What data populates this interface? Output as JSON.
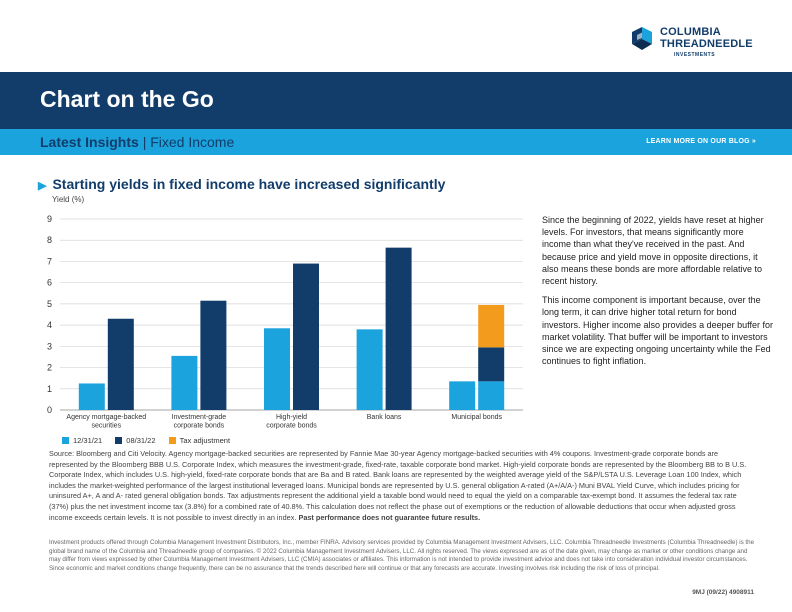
{
  "logo": {
    "line1": "COLUMBIA",
    "line2": "THREADNEEDLE",
    "sub": "INVESTMENTS"
  },
  "header": {
    "title": "Chart on the Go"
  },
  "subheader": {
    "bold": "Latest Insights",
    "separator": "|",
    "topic": "Fixed Income",
    "link": "LEARN MORE ON OUR BLOG »"
  },
  "chart_data": {
    "type": "bar",
    "title": "Starting yields in fixed income have increased significantly",
    "ylabel": "Yield (%)",
    "xlabel": "",
    "ylim": [
      0,
      9
    ],
    "yticks": [
      0,
      1,
      2,
      3,
      4,
      5,
      6,
      7,
      8,
      9
    ],
    "categories": [
      [
        "Agency mortgage-backed",
        "securities"
      ],
      [
        "Investment-grade",
        "corporate bonds"
      ],
      [
        "High-yield",
        "corporate bonds"
      ],
      [
        "Bank loans"
      ],
      [
        "Municipal bonds"
      ]
    ],
    "series": [
      {
        "name": "12/31/21",
        "color": "#1aa3dd",
        "values": [
          1.25,
          2.55,
          3.85,
          3.8,
          1.35
        ]
      },
      {
        "name": "08/31/22",
        "color": "#123d6b",
        "values": [
          4.3,
          5.15,
          6.9,
          7.65,
          2.95
        ]
      },
      {
        "name": "Tax adjustment",
        "color": "#f29b1d",
        "values": [
          null,
          null,
          null,
          null,
          2.0
        ],
        "stacked_on": "08/31/22",
        "stack_base_series": "12/31/21"
      }
    ],
    "gridlines": true,
    "legend_position": "bottom-left"
  },
  "side_text": {
    "p1": "Since the beginning of 2022, yields have reset at higher levels. For investors, that means significantly more income than what they've received in the past. And because price and yield move in opposite directions, it also means these bonds are more affordable relative to recent history.",
    "p2": "This income component is important because, over the long term, it can drive higher total return for bond investors. Higher income also provides a deeper buffer for market volatility. That buffer will be important to investors since we are expecting ongoing uncertainty while the Fed continues to fight inflation."
  },
  "source": {
    "text": "Source: Bloomberg and Citi Velocity. Agency mortgage-backed securities are represented by Fannie Mae 30-year Agency mortgage-backed securities with 4% coupons. Investment-grade corporate bonds are represented by the Bloomberg BBB U.S. Corporate Index, which measures the investment-grade, fixed-rate, taxable corporate bond market. High-yield corporate bonds are represented by the Bloomberg BB to B U.S. Corporate Index, which includes U.S. high-yield, fixed-rate corporate bonds that are Ba and B rated. Bank loans are represented by the weighted average yield of the S&P/LSTA U.S. Leverage Loan 100 Index, which includes the market-weighted performance of the largest institutional leveraged loans. Municipal bonds are represented by U.S. general obligation A-rated (A+/A/A-) Muni BVAL Yield Curve, which includes pricing for uninsured A+, A and A- rated general obligation bonds. Tax adjustments represent the additional yield a taxable bond would need to equal the yield on a comparable tax-exempt bond. It assumes the federal tax rate (37%) plus the net investment income tax (3.8%) for a combined rate of 40.8%. This calculation does not reflect the phase out of exemptions or the reduction of allowable deductions that occur when adjusted gross income exceeds certain levels. It is not possible to invest directly in an index.",
    "bold": "Past performance does not guarantee future results."
  },
  "disclaimer": "Investment products offered through Columbia Management Investment Distributors, Inc., member FINRA. Advisory services provided by Columbia Management Investment Advisers, LLC. Columbia Threadneedle Investments (Columbia Threadneedle) is the global brand name of the Columbia and Threadneedle group of companies. © 2022 Columbia Management Investment Advisers, LLC. All rights reserved. The views expressed are as of the date given, may change as market or other conditions change and may differ from views expressed by other Columbia Management Investment Advisers, LLC (CMIA) associates or affiliates. This information is not intended to provide investment advice and does not take into consideration individual investor circumstances. Since economic and market conditions change frequently, there can be no assurance that the trends described here will continue or that any forecasts are accurate. Investing involves risk including the risk of loss of principal.",
  "footer_code": "9MJ (09/22) 4908911"
}
